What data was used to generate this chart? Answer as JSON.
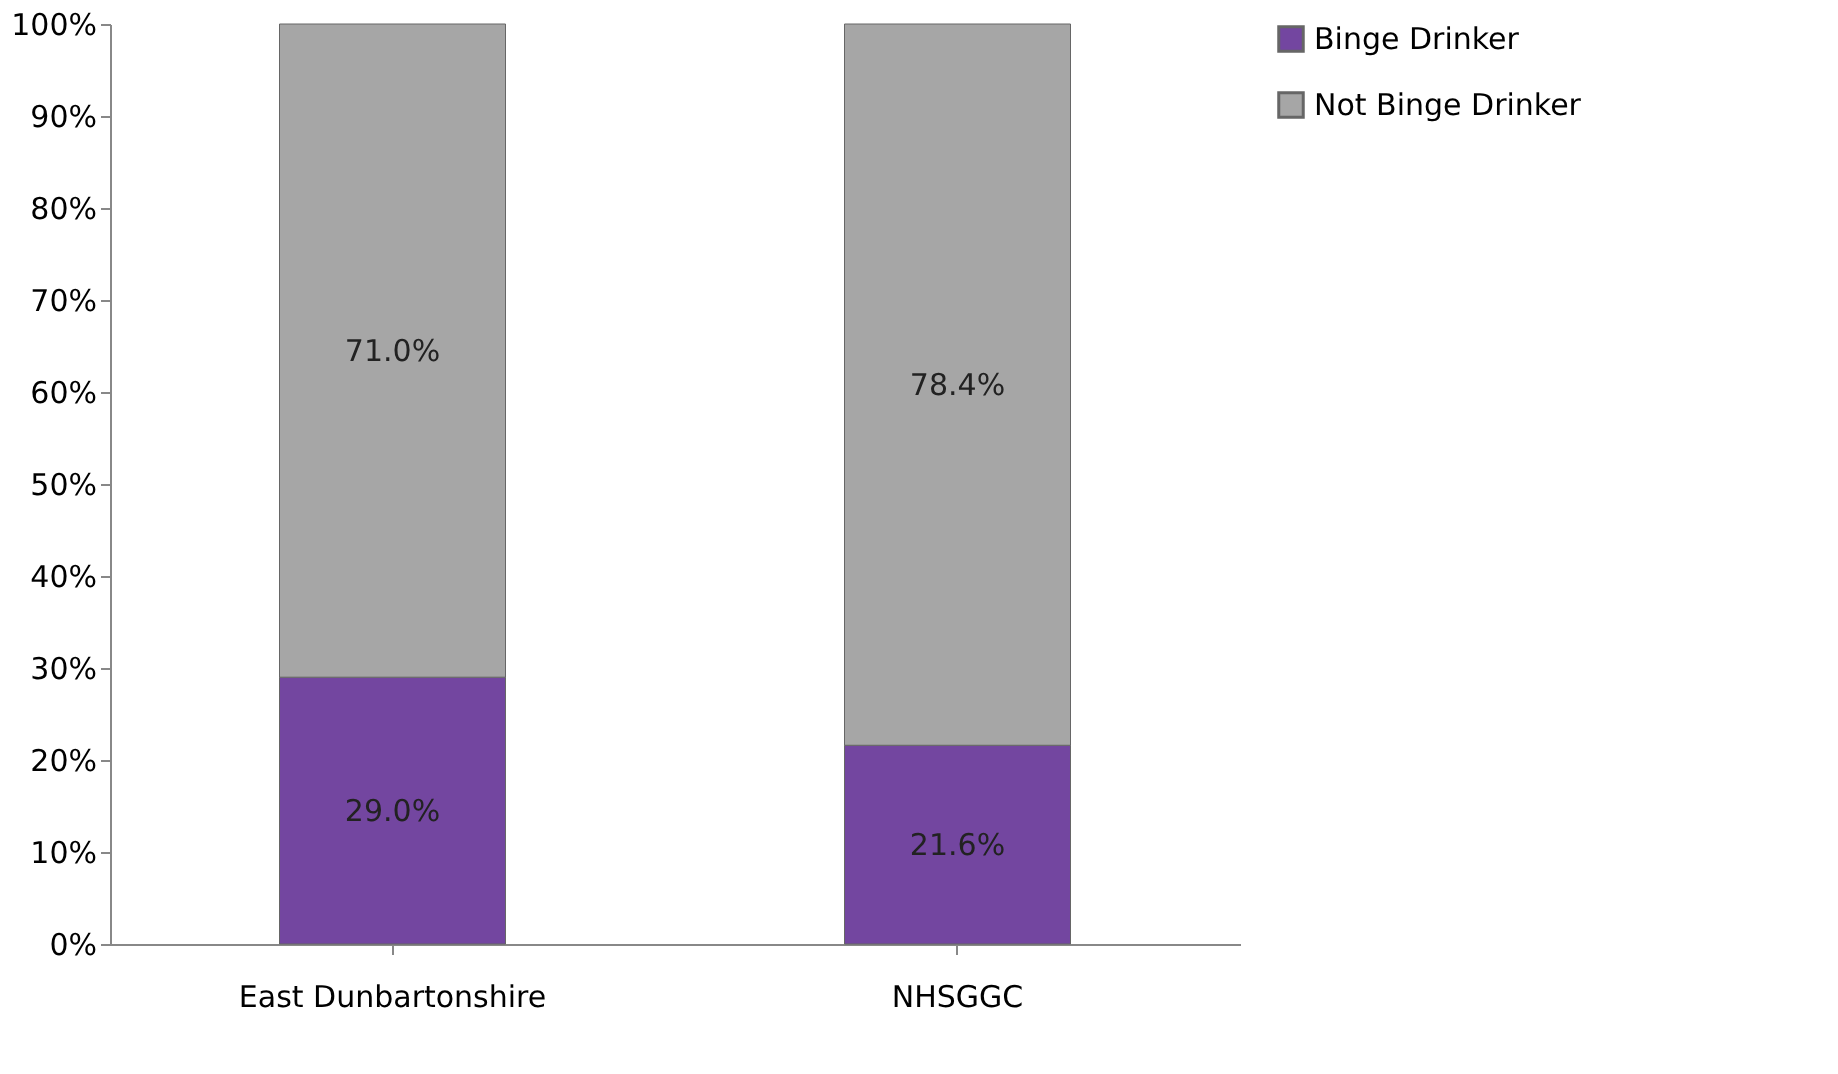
{
  "chart_data": {
    "type": "bar",
    "stacked": true,
    "categories": [
      "East Dunbartonshire",
      "NHSGGC"
    ],
    "series": [
      {
        "name": "Binge Drinker",
        "color": "#7346a0",
        "values": [
          29.0,
          21.6
        ],
        "value_labels": [
          "29.0%",
          "21.6%"
        ]
      },
      {
        "name": "Not Binge Drinker",
        "color": "#a6a6a6",
        "values": [
          71.0,
          78.4
        ],
        "value_labels": [
          "71.0%",
          "78.4%"
        ]
      }
    ],
    "ylim": [
      0,
      100
    ],
    "yticks": [
      {
        "value": 0,
        "label": "0%"
      },
      {
        "value": 10,
        "label": "10%"
      },
      {
        "value": 20,
        "label": "20%"
      },
      {
        "value": 30,
        "label": "30%"
      },
      {
        "value": 40,
        "label": "40%"
      },
      {
        "value": 50,
        "label": "50%"
      },
      {
        "value": 60,
        "label": "60%"
      },
      {
        "value": 70,
        "label": "70%"
      },
      {
        "value": 80,
        "label": "80%"
      },
      {
        "value": 90,
        "label": "90%"
      },
      {
        "value": 100,
        "label": "100%"
      }
    ],
    "grid": false,
    "legend": "right"
  }
}
